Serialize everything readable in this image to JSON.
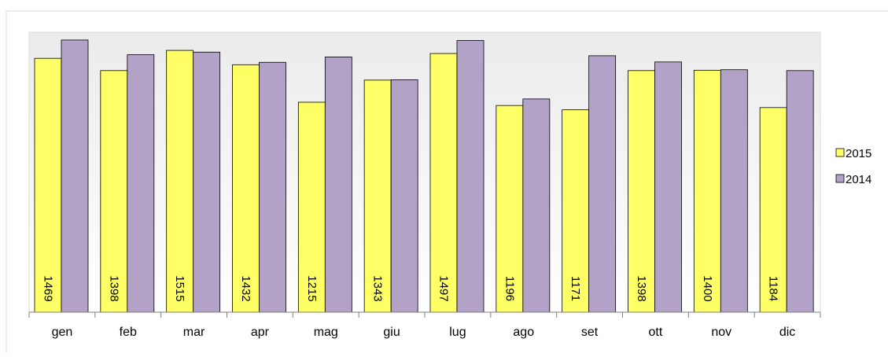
{
  "chart_data": {
    "type": "bar",
    "title": "",
    "xlabel": "",
    "ylabel": "",
    "categories": [
      "gen",
      "feb",
      "mar",
      "apr",
      "mag",
      "giu",
      "lug",
      "ago",
      "set",
      "ott",
      "nov",
      "dic"
    ],
    "series": [
      {
        "name": "2015",
        "values": [
          1469,
          1398,
          1515,
          1432,
          1215,
          1343,
          1497,
          1196,
          1171,
          1398,
          1400,
          1184
        ],
        "color": "#ffff66",
        "show_labels": true
      },
      {
        "name": "2014",
        "values": [
          1575,
          1490,
          1505,
          1446,
          1477,
          1345,
          1572,
          1234,
          1484,
          1448,
          1403,
          1398
        ],
        "color": "#b3a2c8",
        "show_labels": false
      }
    ],
    "ylim": [
      0,
      1620
    ],
    "grid": false,
    "legend_position": "right",
    "colors": {
      "plot_background_top": "#ebebeb",
      "plot_background_bottom": "#ffffff",
      "bar_outline": "#000000",
      "axis": "#7f7f7f",
      "frame": "#d9d9d9"
    }
  }
}
